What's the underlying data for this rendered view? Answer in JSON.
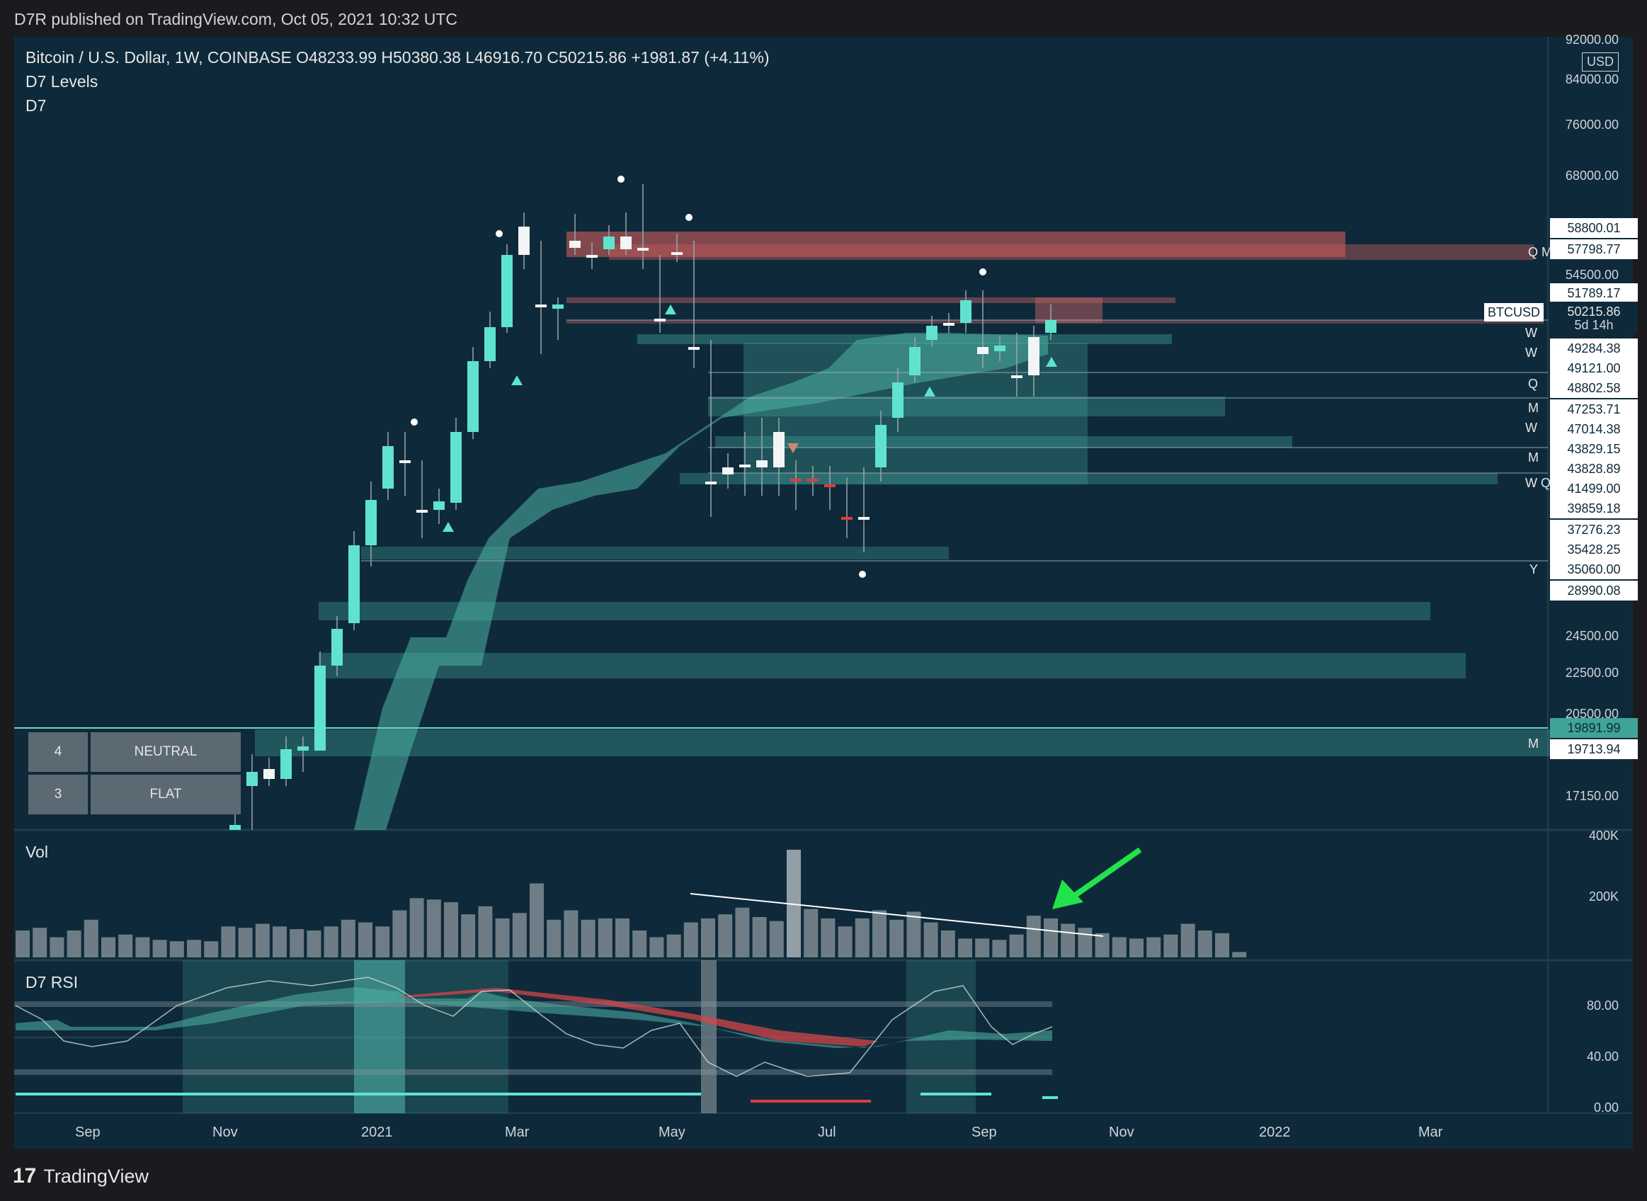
{
  "header": {
    "published": "D7R published on TradingView.com, Oct 05, 2021 10:32 UTC"
  },
  "legend": {
    "symbol_line": "Bitcoin / U.S. Dollar, 1W, COINBASE  O48233.99  H50380.38  L46916.70  C50215.86  +1981.87 (+4.11%)",
    "indicator1": "D7 Levels",
    "indicator2": "D7",
    "vol": "Vol",
    "rsi": "D7 RSI"
  },
  "price_axis": {
    "currency": "USD",
    "ticks": [
      "92000.00",
      "84000.00",
      "76000.00",
      "68000.00",
      "54500.00",
      "24500.00",
      "22500.00",
      "20500.00",
      "17150.00"
    ],
    "vol_ticks": [
      "400K",
      "200K"
    ],
    "rsi_ticks": [
      "80.00",
      "40.00",
      "0.00"
    ]
  },
  "levels": [
    {
      "label": "58800.01",
      "tag": ""
    },
    {
      "label": "57798.77",
      "tag": "Q M"
    },
    {
      "label": "51789.17",
      "tag": ""
    },
    {
      "label": "50215.86",
      "tag": ""
    },
    {
      "label": "49284.38",
      "tag": "W"
    },
    {
      "label": "49121.00",
      "tag": "W"
    },
    {
      "label": "48802.58",
      "tag": "Q"
    },
    {
      "label": "47253.71",
      "tag": "M"
    },
    {
      "label": "47014.38",
      "tag": "W"
    },
    {
      "label": "43829.15",
      "tag": ""
    },
    {
      "label": "43828.89",
      "tag": "M"
    },
    {
      "label": "41499.00",
      "tag": "W Q"
    },
    {
      "label": "39859.18",
      "tag": ""
    },
    {
      "label": "37276.23",
      "tag": ""
    },
    {
      "label": "35428.25",
      "tag": ""
    },
    {
      "label": "35060.00",
      "tag": "Y"
    },
    {
      "label": "28990.08",
      "tag": ""
    },
    {
      "label": "19891.99",
      "tag": ""
    },
    {
      "label": "19713.94",
      "tag": "M"
    }
  ],
  "ticker": {
    "symbol": "BTCUSD",
    "price": "50215.86",
    "countdown": "5d 14h"
  },
  "time_axis": [
    "Sep",
    "Nov",
    "2021",
    "Mar",
    "May",
    "Jul",
    "Sep",
    "Nov",
    "2022",
    "Mar"
  ],
  "status_panel": [
    {
      "num": "4",
      "label": "NEUTRAL"
    },
    {
      "num": "3",
      "label": "FLAT"
    }
  ],
  "footer": {
    "brand": "TradingView"
  },
  "chart_data": {
    "type": "candlestick",
    "title": "Bitcoin / U.S. Dollar, 1W, COINBASE",
    "ohlc_last": {
      "open": 48233.99,
      "high": 50380.38,
      "low": 46916.7,
      "close": 50215.86,
      "change": 1981.87,
      "change_pct": 4.11
    },
    "price_ylim": [
      15000,
      92000
    ],
    "rsi_levels": [
      80,
      40,
      0
    ]
  }
}
